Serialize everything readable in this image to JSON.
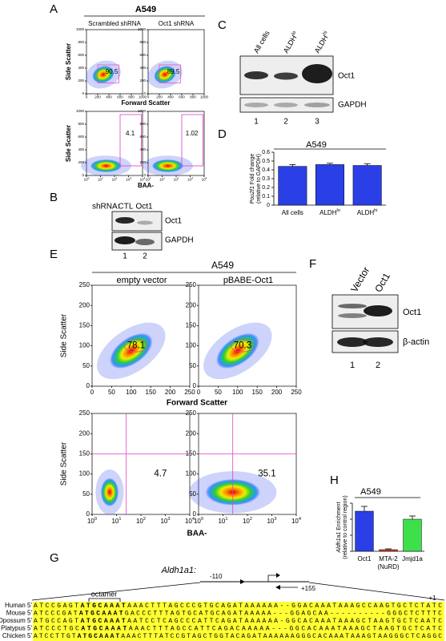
{
  "panels": {
    "A": {
      "label": "A",
      "title": "A549",
      "subtitles": [
        "Scrambled shRNA",
        "Oct1 shRNA"
      ],
      "y_label": "Side Scatter",
      "x_label_top": "Forward Scatter",
      "x_label_bottom": "BAA-",
      "gates_top": [
        90.5,
        89.5
      ],
      "gates_bottom": [
        4.1,
        1.02
      ],
      "scatter_ticks": [
        0,
        200,
        400,
        600,
        800,
        1000
      ],
      "log_ticks": [
        {
          "base": "10",
          "exp": "0"
        },
        {
          "base": "10",
          "exp": "1"
        },
        {
          "base": "10",
          "exp": "2"
        },
        {
          "base": "10",
          "exp": "3"
        },
        {
          "base": "10",
          "exp": "4"
        }
      ]
    },
    "B": {
      "label": "B",
      "prefix": "shRNA:",
      "lanes": [
        "CTL",
        "Oct1"
      ],
      "bands": [
        "Oct1",
        "GAPDH"
      ],
      "lane_numbers": [
        "1",
        "2"
      ]
    },
    "C": {
      "label": "C",
      "lanes": [
        {
          "text": "All cells"
        },
        {
          "text": "ALDH",
          "sup": "lo"
        },
        {
          "text": "ALDH",
          "sup": "hi"
        }
      ],
      "bands": [
        "Oct1",
        "GAPDH"
      ],
      "lane_numbers": [
        "1",
        "2",
        "3"
      ]
    },
    "D": {
      "label": "D",
      "type": "bar",
      "title": "A549",
      "y_label_italic": "Pou2f1",
      "y_label": " Fold change",
      "y_label_2": "(relative to GAPDH)",
      "categories": [
        {
          "text": "All cells"
        },
        {
          "text": "ALDH",
          "sup": "lo"
        },
        {
          "text": "ALDH",
          "sup": "hi"
        }
      ],
      "values": [
        0.44,
        0.46,
        0.45
      ],
      "errors": [
        0.02,
        0.015,
        0.02
      ],
      "ylim": [
        0,
        0.6
      ],
      "yticks": [
        0,
        0.1,
        0.2,
        0.3,
        0.4,
        0.5,
        0.6
      ],
      "color": "#2b3fe6"
    },
    "E": {
      "label": "E",
      "title": "A549",
      "subtitles": [
        "empty vector",
        "pBABE-Oct1"
      ],
      "y_label": "Side Scatter",
      "x_label_top": "Forward Scatter",
      "x_label_bottom": "BAA-",
      "gates_top": [
        78.1,
        70.3
      ],
      "gates_bottom": [
        4.7,
        35.1
      ],
      "scatter_ticks": [
        0,
        50,
        100,
        150,
        200,
        250
      ],
      "log_ticks": [
        {
          "base": "10",
          "exp": "0"
        },
        {
          "base": "10",
          "exp": "1"
        },
        {
          "base": "10",
          "exp": "2"
        },
        {
          "base": "10",
          "exp": "3"
        },
        {
          "base": "10",
          "exp": "4"
        }
      ]
    },
    "F": {
      "label": "F",
      "lanes": [
        "Vector",
        "Oct1"
      ],
      "bands": [
        "Oct1",
        "β-actin"
      ],
      "lane_numbers": [
        "1",
        "2"
      ]
    },
    "G": {
      "label": "G",
      "gene": "Aldh1a1:",
      "left_primer": "-110",
      "right_primer": "+155",
      "motif": "octamer",
      "tss": "+1",
      "rows": [
        {
          "species": "Human 5'",
          "pre": "ATCCGAGT",
          "octamer": "ATGCAAAT",
          "post": "AAACTTTAGCCCGTGCAGATAAAAAA--GGACAAATAAAGCCAAGTGCTCTATC"
        },
        {
          "species": "Mouse 5'",
          "pre": "ATCCCGAT",
          "octamer": "ATGCAAAT",
          "post": "GACCCTTTAGTGCATGCAGATAAAAA---GGAGCAA----------GGGCTCTTTC"
        },
        {
          "species": "Opossum 5'",
          "pre": "ATGCCAGT",
          "octamer": "ATGCAAAT",
          "post": "AATCCTCAGCCCATTCAGATAAAAAA-GGCACAAATAAAGCTAAGTGCTCAATC"
        },
        {
          "species": "Platypus 5'",
          "pre": "ATCCCTGC",
          "octamer": "ATGCAAAT",
          "post": "AAACTTTAGCCATTCAGACAAAAA---GGCACAAATAAAGCTAAGTGCTCATC"
        },
        {
          "species": "Chicken 5'",
          "pre": "ATCCTTGT",
          "octamer": "ATGCAAAT",
          "post": "AAACTTTATCCGTAGCTGGTACAGATAAAAAAGGGCACAAATAAAGTAAGGGCTCAGGC"
        }
      ]
    },
    "H": {
      "label": "H",
      "type": "bar",
      "title": "A549",
      "y_label_italic": "Aldh1a1",
      "y_label": " Enrichment",
      "y_label_2": "(relative to control region)",
      "categories": [
        {
          "text": "Oct1"
        },
        {
          "text": "MTA-2",
          "note": "(NuRD)"
        },
        {
          "text": "Jmjd1a"
        }
      ],
      "values": [
        2.5,
        0.1,
        2.0
      ],
      "errors": [
        0.3,
        0.05,
        0.2
      ],
      "ylim": [
        0,
        3
      ],
      "yticks": [
        0,
        1,
        2,
        3
      ],
      "colors": [
        "#2b3fe6",
        "#e03a1e",
        "#3de04a"
      ]
    }
  }
}
